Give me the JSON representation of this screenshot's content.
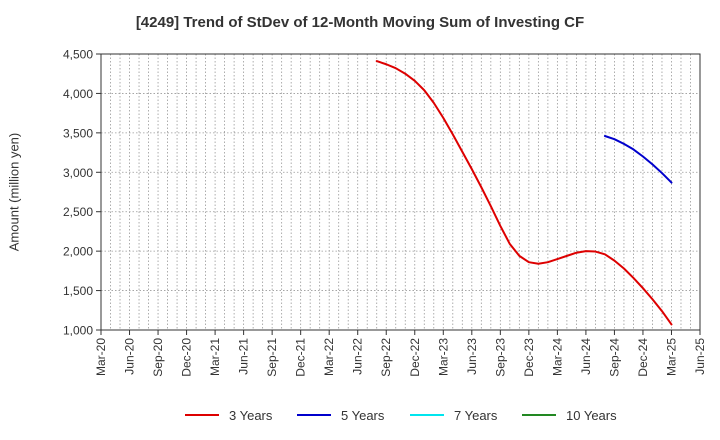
{
  "chart_data": {
    "type": "line",
    "title": "[4249]  Trend of StDev of 12-Month Moving Sum of Investing CF",
    "ylabel": "Amount (million yen)",
    "xlabel": "",
    "ylim": [
      1000,
      4500
    ],
    "yticks": [
      "1,000",
      "1,500",
      "2,000",
      "2,500",
      "3,000",
      "3,500",
      "4,000",
      "4,500"
    ],
    "xticks": [
      "Mar-20",
      "Jun-20",
      "Sep-20",
      "Dec-20",
      "Mar-21",
      "Jun-21",
      "Sep-21",
      "Dec-21",
      "Mar-22",
      "Jun-22",
      "Sep-22",
      "Dec-22",
      "Mar-23",
      "Jun-23",
      "Sep-23",
      "Dec-23",
      "Mar-24",
      "Jun-24",
      "Sep-24",
      "Dec-24",
      "Mar-25",
      "Jun-25"
    ],
    "x_start": "Mar-20",
    "grid": true,
    "legend_position": "bottom",
    "series": [
      {
        "name": "3 Years",
        "color": "#dd0000",
        "x": [
          "Aug-22",
          "Sep-22",
          "Oct-22",
          "Nov-22",
          "Dec-22",
          "Jan-23",
          "Feb-23",
          "Mar-23",
          "Apr-23",
          "May-23",
          "Jun-23",
          "Jul-23",
          "Aug-23",
          "Sep-23",
          "Oct-23",
          "Nov-23",
          "Dec-23",
          "Jan-24",
          "Feb-24",
          "Mar-24",
          "Apr-24",
          "May-24",
          "Jun-24",
          "Jul-24",
          "Aug-24",
          "Sep-24",
          "Oct-24",
          "Nov-24",
          "Dec-24",
          "Jan-25",
          "Feb-25",
          "Mar-25"
        ],
        "values": [
          4410,
          4370,
          4320,
          4250,
          4160,
          4040,
          3880,
          3690,
          3480,
          3260,
          3040,
          2810,
          2570,
          2320,
          2090,
          1940,
          1860,
          1840,
          1860,
          1900,
          1940,
          1980,
          2000,
          1995,
          1960,
          1880,
          1780,
          1660,
          1530,
          1390,
          1240,
          1070
        ]
      },
      {
        "name": "5 Years",
        "color": "#0000cc",
        "x": [
          "Aug-24",
          "Sep-24",
          "Oct-24",
          "Nov-24",
          "Dec-24",
          "Jan-25",
          "Feb-25",
          "Mar-25"
        ],
        "values": [
          3460,
          3420,
          3360,
          3290,
          3200,
          3100,
          2990,
          2870
        ]
      },
      {
        "name": "7 Years",
        "color": "#00e5ee",
        "x": [],
        "values": []
      },
      {
        "name": "10 Years",
        "color": "#228822",
        "x": [],
        "values": []
      }
    ]
  }
}
